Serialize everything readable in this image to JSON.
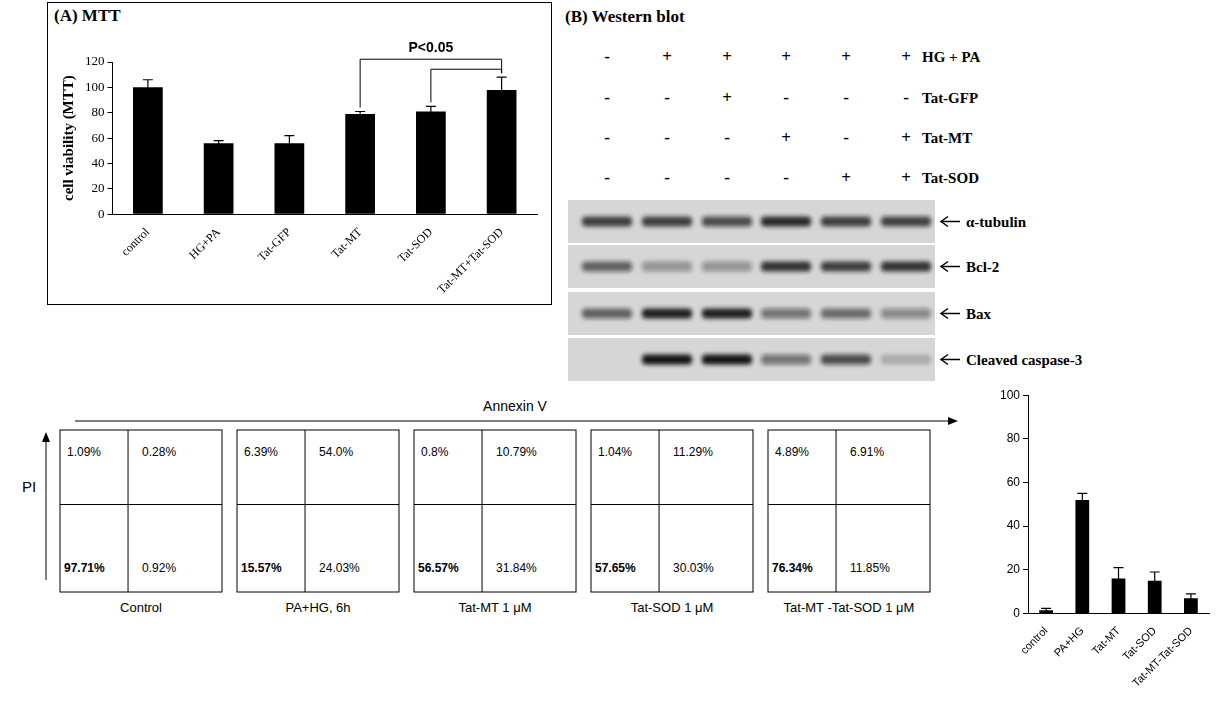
{
  "chart_data": [
    {
      "type": "bar",
      "title": "(A) MTT",
      "y_label": "cell viability (MTT)",
      "categories": [
        "control",
        "HG+PA",
        "Tat-GFP",
        "Tat-MT",
        "Tat-SOD",
        "Tat-MT+Tat-SOD"
      ],
      "values": [
        100,
        56,
        56,
        79,
        81,
        98
      ],
      "errors": [
        6,
        2,
        6,
        2,
        4,
        10
      ],
      "color": "#000000",
      "ylim": [
        0,
        120
      ],
      "yticks": [
        0,
        20,
        40,
        60,
        80,
        100,
        120
      ],
      "grid": false,
      "annotation": {
        "text": "P<0.05",
        "brackets": [
          [
            "Tat-MT",
            "Tat-MT+Tat-SOD"
          ],
          [
            "Tat-SOD",
            "Tat-MT+Tat-SOD"
          ]
        ]
      }
    },
    {
      "type": "bar",
      "categories": [
        "control",
        "PA+HG",
        "Tat-MT",
        "Tat-SOD",
        "Tat-MT-Tat-SOD"
      ],
      "values": [
        1.5,
        52,
        16,
        15,
        7
      ],
      "errors": [
        0.8,
        3,
        5,
        4,
        2
      ],
      "color": "#000000",
      "ylim": [
        0,
        100
      ],
      "yticks": [
        0,
        20,
        40,
        60,
        80,
        100
      ],
      "grid": false
    }
  ],
  "western_blot": {
    "title": "(B) Western blot",
    "conditions": [
      {
        "label": "HG + PA",
        "marks": [
          "-",
          "+",
          "+",
          "+",
          "+",
          "+"
        ]
      },
      {
        "label": "Tat-GFP",
        "marks": [
          "-",
          "-",
          "+",
          "-",
          "-",
          "-"
        ]
      },
      {
        "label": "Tat-MT",
        "marks": [
          "-",
          "-",
          "-",
          "+",
          "-",
          "+"
        ]
      },
      {
        "label": "Tat-SOD",
        "marks": [
          "-",
          "-",
          "-",
          "-",
          "+",
          "+"
        ]
      }
    ],
    "blots": [
      {
        "label": "α-tubulin",
        "bands": [
          0.8,
          0.8,
          0.7,
          0.9,
          0.8,
          0.75
        ]
      },
      {
        "label": "Bcl-2",
        "bands": [
          0.6,
          0.35,
          0.35,
          0.85,
          0.8,
          0.85
        ]
      },
      {
        "label": "Bax",
        "bands": [
          0.6,
          0.95,
          0.95,
          0.5,
          0.55,
          0.4
        ]
      },
      {
        "label": "Cleaved caspase-3",
        "bands": [
          0,
          1,
          1,
          0.5,
          0.7,
          0.2
        ]
      }
    ]
  },
  "flow_cytometry": {
    "x_label": "Annexin V",
    "y_label": "PI",
    "panels": [
      {
        "label": "Control",
        "values": [
          1.09,
          0.28,
          97.71,
          0.92
        ],
        "value_labels": [
          "1.09%",
          "0.28%",
          "97.71%",
          "0.92%"
        ]
      },
      {
        "label": "PA+HG, 6h",
        "values": [
          6.39,
          54.0,
          15.57,
          24.03
        ],
        "value_labels": [
          "6.39%",
          "54.0%",
          "15.57%",
          "24.03%"
        ]
      },
      {
        "label": "Tat-MT 1 μM",
        "values": [
          0.8,
          10.79,
          56.57,
          31.84
        ],
        "value_labels": [
          "0.8%",
          "10.79%",
          "56.57%",
          "31.84%"
        ]
      },
      {
        "label": "Tat-SOD 1 μM",
        "values": [
          1.04,
          11.29,
          57.65,
          30.03
        ],
        "value_labels": [
          "1.04%",
          "11.29%",
          "57.65%",
          "30.03%"
        ]
      },
      {
        "label": "Tat-MT -Tat-SOD 1 μM",
        "values": [
          4.89,
          6.91,
          76.34,
          11.85
        ],
        "value_labels": [
          "4.89%",
          "6.91%",
          "76.34%",
          "11.85%"
        ]
      }
    ]
  }
}
